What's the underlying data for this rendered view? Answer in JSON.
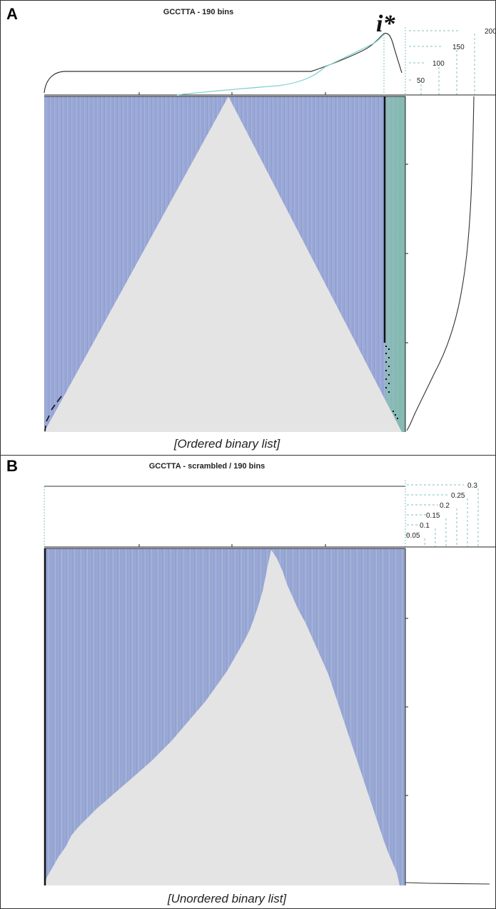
{
  "panel_a": {
    "letter": "A",
    "title": "GCCTTA - 190 bins",
    "marker": "i*",
    "scale_labels": [
      "200",
      "150",
      "100",
      "50"
    ],
    "caption": "[Ordered binary list]"
  },
  "panel_b": {
    "letter": "B",
    "title": "GCCTTA - scrambled / 190 bins",
    "scale_labels": [
      "0.3",
      "0.25",
      "0.2",
      "0.15",
      "0.1",
      "0.05"
    ],
    "caption": "[Unordered binary list]"
  },
  "colors": {
    "bar_fill": "#9aa8d6",
    "background_fill": "#e4e4e4",
    "highlight_green": "#7ccf9a",
    "curve_cyan": "#7fd0d0",
    "dashed_guides": "#80c0c0",
    "line_black": "#222222"
  }
}
